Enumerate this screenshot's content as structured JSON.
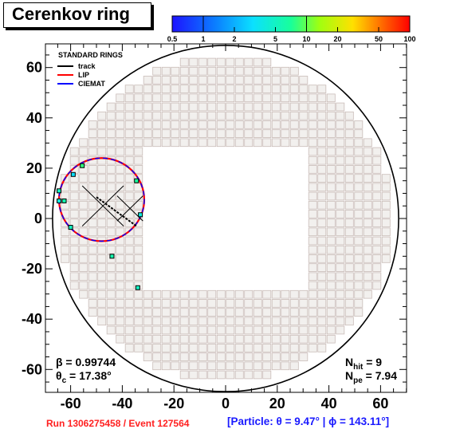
{
  "title": "Cerenkov ring",
  "colorbar": {
    "scale": "log",
    "range": [
      0.5,
      100
    ],
    "ticks": [
      "0.5",
      "1",
      "2",
      "5",
      "10",
      "20",
      "50",
      "100"
    ]
  },
  "legend": {
    "header": "STANDARD RINGS",
    "placement": "top-left",
    "entries": [
      {
        "label": "track",
        "color": "#000000"
      },
      {
        "label": "LIP",
        "color": "#ff0000"
      },
      {
        "label": "CIEMAT",
        "color": "#0000ff"
      }
    ]
  },
  "stats": {
    "beta": "β = 0.99744",
    "theta_prefix": "θ",
    "theta_sub": "c",
    "theta_suffix": " = 17.38°",
    "nhit_prefix": "N",
    "nhit_sub": "hit",
    "nhit_suffix": " = 9",
    "npe_prefix": "N",
    "npe_sub": "pe",
    "npe_suffix": " = 7.94"
  },
  "footer": {
    "run": "Run 1306275458 / Event 127564",
    "particle": "[Particle: θ = 9.47° | ϕ = 143.11°]"
  },
  "chart_data": {
    "type": "scatter",
    "xlim": [
      -70,
      70
    ],
    "ylim": [
      -70,
      70
    ],
    "xticks": [
      -60,
      -40,
      -20,
      0,
      20,
      40,
      60
    ],
    "yticks": [
      -60,
      -40,
      -20,
      0,
      20,
      40,
      60
    ],
    "xtick_labels": [
      "-60",
      "-40",
      "-20",
      "0",
      "20",
      "40",
      "60"
    ],
    "ytick_labels": [
      "-60",
      "-40",
      "-20",
      "0",
      "20",
      "40",
      "60"
    ],
    "detector_radius": 67,
    "ring": {
      "cx": -48,
      "cy": 7.5,
      "r": 16.5
    },
    "track": {
      "from": [
        -50,
        8.5
      ],
      "to": [
        -34.5,
        -3
      ]
    },
    "crosshairs": [
      {
        "cx": -47.5,
        "cy": 5,
        "half": 8
      },
      {
        "cx": -37,
        "cy": 4,
        "half": 5
      }
    ],
    "hits": [
      {
        "x": -59,
        "y": 17.5,
        "value": 3
      },
      {
        "x": -55.5,
        "y": 21,
        "value": 8
      },
      {
        "x": -64.5,
        "y": 11,
        "value": 5
      },
      {
        "x": -64.5,
        "y": 7,
        "value": 4
      },
      {
        "x": -62.5,
        "y": 7,
        "value": 6
      },
      {
        "x": -60,
        "y": -3.5,
        "value": 5
      },
      {
        "x": -34.5,
        "y": 15,
        "value": 7
      },
      {
        "x": -33,
        "y": 1.5,
        "value": 4
      },
      {
        "x": -44,
        "y": -15,
        "value": 6
      },
      {
        "x": -34,
        "y": -27.5,
        "value": 5
      }
    ]
  }
}
